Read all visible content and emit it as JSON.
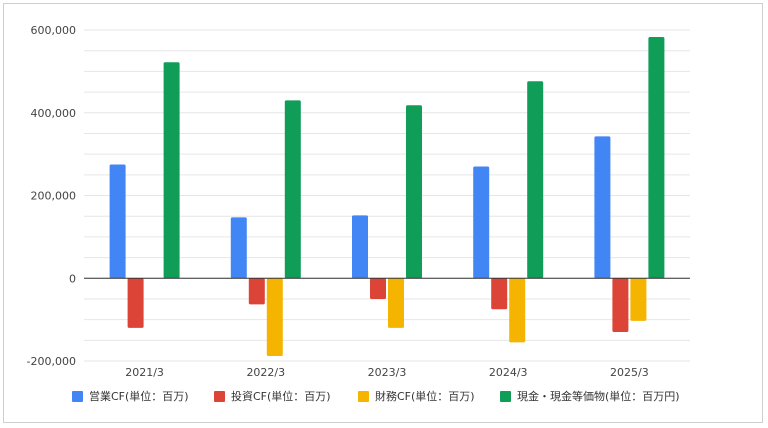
{
  "chart_data": {
    "type": "bar",
    "categories": [
      "2021/3",
      "2022/3",
      "2023/3",
      "2024/3",
      "2025/3"
    ],
    "series": [
      {
        "name": "営業CF(単位：百万)",
        "color": "#4285F4",
        "values": [
          275000,
          147000,
          152000,
          270000,
          343000
        ]
      },
      {
        "name": "投資CF(単位：百万)",
        "color": "#DB4437",
        "values": [
          -120000,
          -63000,
          -50000,
          -75000,
          -130000
        ]
      },
      {
        "name": "財務CF(単位：百万)",
        "color": "#F4B400",
        "values": [
          0,
          -188000,
          -120000,
          -155000,
          -103000
        ]
      },
      {
        "name": "現金・現金等価物(単位：百万円)",
        "color": "#0F9D58",
        "values": [
          522000,
          430000,
          418000,
          476000,
          583000
        ]
      }
    ],
    "y_ticks": [
      "600,000",
      "400,000",
      "200,000",
      "0",
      "-200,000"
    ],
    "y_tick_values": [
      600000,
      400000,
      200000,
      0,
      -200000
    ],
    "ylim": [
      -200000,
      600000
    ],
    "grid": true,
    "legend_position": "bottom"
  }
}
